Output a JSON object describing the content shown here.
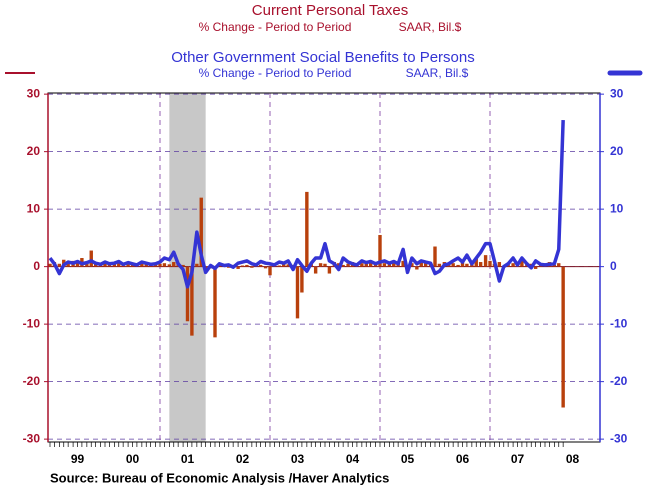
{
  "chart_data": {
    "type": "bar",
    "xlim": [
      1999,
      2009
    ],
    "xticks": [
      {
        "value": 1999.5,
        "label": "99"
      },
      {
        "value": 2000.5,
        "label": "00"
      },
      {
        "value": 2001.5,
        "label": "01"
      },
      {
        "value": 2002.5,
        "label": "02"
      },
      {
        "value": 2003.5,
        "label": "03"
      },
      {
        "value": 2004.5,
        "label": "04"
      },
      {
        "value": 2005.5,
        "label": "05"
      },
      {
        "value": 2006.5,
        "label": "06"
      },
      {
        "value": 2007.5,
        "label": "07"
      },
      {
        "value": 2008.5,
        "label": "08"
      }
    ],
    "xgrid": [
      2001,
      2003,
      2005,
      2007
    ],
    "shade": [
      2001.17,
      2001.83
    ],
    "ylim": [
      -30.5,
      30.2
    ],
    "yticks": [
      30,
      20,
      10,
      0,
      -10,
      -20,
      -30
    ],
    "y2lim": [
      -30.5,
      30.2
    ],
    "y2ticks": [
      30,
      20,
      10,
      0,
      -10,
      -20,
      -30
    ],
    "grid": true,
    "source": "Source:  Bureau of Economic Analysis /Haver Analytics",
    "x": [
      1999.0,
      1999.08,
      1999.17,
      1999.25,
      1999.33,
      1999.42,
      1999.5,
      1999.58,
      1999.67,
      1999.75,
      1999.83,
      1999.92,
      2000.0,
      2000.08,
      2000.17,
      2000.25,
      2000.33,
      2000.42,
      2000.5,
      2000.58,
      2000.67,
      2000.75,
      2000.83,
      2000.92,
      2001.0,
      2001.08,
      2001.17,
      2001.25,
      2001.33,
      2001.42,
      2001.5,
      2001.58,
      2001.67,
      2001.75,
      2001.83,
      2001.92,
      2002.0,
      2002.08,
      2002.17,
      2002.25,
      2002.33,
      2002.42,
      2002.5,
      2002.58,
      2002.67,
      2002.75,
      2002.83,
      2002.92,
      2003.0,
      2003.08,
      2003.17,
      2003.25,
      2003.33,
      2003.42,
      2003.5,
      2003.58,
      2003.67,
      2003.75,
      2003.83,
      2003.92,
      2004.0,
      2004.08,
      2004.17,
      2004.25,
      2004.33,
      2004.42,
      2004.5,
      2004.58,
      2004.67,
      2004.75,
      2004.83,
      2004.92,
      2005.0,
      2005.08,
      2005.17,
      2005.25,
      2005.33,
      2005.42,
      2005.5,
      2005.58,
      2005.67,
      2005.75,
      2005.83,
      2005.92,
      2006.0,
      2006.08,
      2006.17,
      2006.25,
      2006.33,
      2006.42,
      2006.5,
      2006.58,
      2006.67,
      2006.75,
      2006.83,
      2006.92,
      2007.0,
      2007.08,
      2007.17,
      2007.25,
      2007.33,
      2007.42,
      2007.5,
      2007.58,
      2007.67,
      2007.75,
      2007.83,
      2007.92,
      2008.0,
      2008.08,
      2008.17,
      2008.25,
      2008.33
    ],
    "series": [
      {
        "name": "Current Personal Taxes",
        "units": [
          "% Change - Period to Period",
          "SAAR, Bil.$"
        ],
        "type": "bar",
        "axis": "y",
        "color": "#b8400c",
        "values": [
          0.5,
          0.8,
          0.5,
          1.2,
          0.8,
          1,
          0.6,
          1.5,
          0.8,
          2.8,
          0.5,
          0.7,
          0.6,
          0.8,
          0.4,
          0.9,
          0.5,
          0.7,
          0.3,
          0.6,
          0.8,
          0.5,
          0.4,
          0.6,
          0.5,
          0.6,
          0.4,
          0.8,
          0.5,
          0.3,
          -9.5,
          -12,
          0.5,
          12,
          -0.5,
          -0.3,
          -12.3,
          0.3,
          0.2,
          -0.2,
          0.3,
          -0.4,
          0.2,
          0.3,
          -0.2,
          0.4,
          0.3,
          -0.3,
          -1.5,
          0.3,
          0.2,
          0.5,
          0.4,
          0.3,
          -9,
          -4.5,
          13,
          0.5,
          -1.2,
          0.6,
          0.5,
          -1.2,
          0.8,
          0.6,
          0.3,
          0.5,
          0.8,
          0.4,
          0.6,
          0.5,
          0.7,
          0.4,
          5.5,
          0.6,
          0.4,
          0.8,
          0.5,
          1,
          0.3,
          0.6,
          -0.5,
          0.7,
          0.8,
          0.5,
          3.5,
          0.5,
          0.8,
          0.4,
          0.6,
          0.3,
          0.9,
          0.5,
          0.7,
          1.5,
          0.8,
          2,
          1,
          0.5,
          0.8,
          -0.2,
          0.4,
          0.6,
          0.5,
          1,
          0.7,
          0.5,
          -0.4,
          0.6,
          0.5,
          0.8,
          0.3,
          0.6,
          -24.5
        ]
      },
      {
        "name": "Other Government Social Benefits to Persons",
        "units": [
          "% Change - Period to Period",
          "SAAR, Bil.$"
        ],
        "type": "line",
        "axis": "y2",
        "color": "#3434d4",
        "values": [
          1.5,
          0.5,
          -1.2,
          0.3,
          0.8,
          0.6,
          0.9,
          0.5,
          0.7,
          1.0,
          0.6,
          0.4,
          0.8,
          0.5,
          0.6,
          0.9,
          0.4,
          0.7,
          0.5,
          0.3,
          0.8,
          0.6,
          0.4,
          0.5,
          0.8,
          1.5,
          1.2,
          2.5,
          0.5,
          -0.5,
          -3.5,
          -1,
          6,
          2,
          -1,
          0.2,
          -0.3,
          0.5,
          0.2,
          0.3,
          -0.1,
          0.6,
          0.8,
          1,
          0.5,
          0.3,
          0.9,
          0.6,
          0.5,
          0.3,
          0.8,
          0.6,
          1,
          -0.5,
          1.2,
          0.2,
          -0.8,
          0.6,
          1.5,
          1.5,
          4,
          1,
          0.5,
          -0.5,
          1.5,
          0.8,
          0.5,
          0.3,
          1,
          0.7,
          0.9,
          0.5,
          0.8,
          1,
          0.6,
          0.9,
          0.5,
          3,
          -1,
          1.5,
          0.5,
          1,
          0.8,
          0.6,
          -1.2,
          -0.8,
          0.3,
          0.5,
          1,
          1.5,
          0.8,
          2,
          0.5,
          1.5,
          2.5,
          4,
          4,
          1,
          -2.5,
          0,
          0.5,
          1.5,
          0.3,
          1.5,
          0.5,
          -0.2,
          1,
          0.4,
          0.3,
          0.4,
          0.5,
          3,
          25.5
        ]
      }
    ]
  }
}
